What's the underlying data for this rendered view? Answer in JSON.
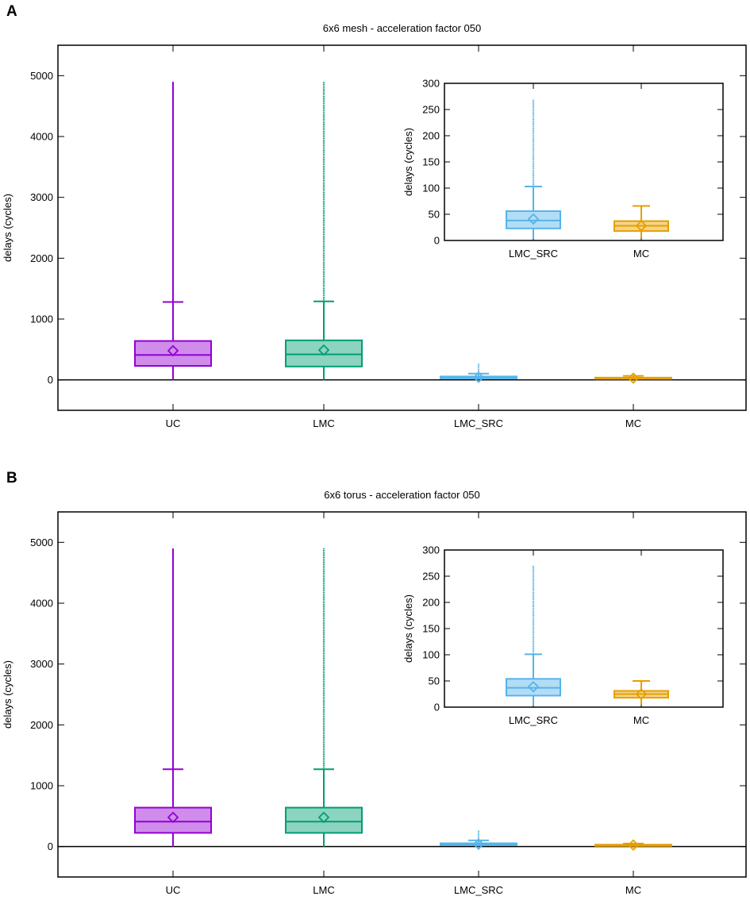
{
  "chart_data": [
    {
      "panel": "A",
      "type": "boxplot",
      "title": "6x6 mesh - acceleration factor 050",
      "xlabel": "",
      "ylabel": "delays (cycles)",
      "ylim": [
        -500,
        5500
      ],
      "yticks": [
        0,
        1000,
        2000,
        3000,
        4000,
        5000
      ],
      "zero_line": true,
      "categories": [
        "UC",
        "LMC",
        "LMC_SRC",
        "MC"
      ],
      "colors": [
        "#9400d3",
        "#009e73",
        "#56b4e9",
        "#e69f00"
      ],
      "boxes": [
        {
          "name": "UC",
          "min": 0,
          "q1": 230,
          "median": 410,
          "q3": 640,
          "whisker_high": 1280,
          "max": 4900,
          "mean": 480,
          "outliers": "none"
        },
        {
          "name": "LMC",
          "min": 0,
          "q1": 220,
          "median": 420,
          "q3": 650,
          "whisker_high": 1290,
          "max": 4900,
          "mean": 490,
          "outliers": "dense"
        },
        {
          "name": "LMC_SRC",
          "min": 3,
          "q1": 23,
          "median": 38,
          "q3": 56,
          "whisker_high": 103,
          "max": 270,
          "mean": 41,
          "outliers": "dense"
        },
        {
          "name": "MC",
          "min": 5,
          "q1": 18,
          "median": 28,
          "q3": 37,
          "whisker_high": 66,
          "max": 66,
          "mean": 28,
          "outliers": "none"
        }
      ],
      "inset": {
        "ylabel": "delays (cycles)",
        "ylim": [
          0,
          300
        ],
        "yticks": [
          0,
          50,
          100,
          150,
          200,
          250,
          300
        ],
        "categories": [
          "LMC_SRC",
          "MC"
        ],
        "colors": [
          "#56b4e9",
          "#e69f00"
        ],
        "boxes": [
          {
            "name": "LMC_SRC",
            "min": 3,
            "q1": 23,
            "median": 38,
            "q3": 56,
            "whisker_high": 103,
            "max": 270,
            "mean": 41,
            "outliers": "dense"
          },
          {
            "name": "MC",
            "min": 5,
            "q1": 18,
            "median": 28,
            "q3": 37,
            "whisker_high": 66,
            "max": 66,
            "mean": 28,
            "outliers": "none"
          }
        ]
      }
    },
    {
      "panel": "B",
      "type": "boxplot",
      "title": "6x6 torus - acceleration factor 050",
      "xlabel": "",
      "ylabel": "delays (cycles)",
      "ylim": [
        -500,
        5500
      ],
      "yticks": [
        0,
        1000,
        2000,
        3000,
        4000,
        5000
      ],
      "zero_line": true,
      "categories": [
        "UC",
        "LMC",
        "LMC_SRC",
        "MC"
      ],
      "colors": [
        "#9400d3",
        "#009e73",
        "#56b4e9",
        "#e69f00"
      ],
      "boxes": [
        {
          "name": "UC",
          "min": 0,
          "q1": 225,
          "median": 410,
          "q3": 640,
          "whisker_high": 1270,
          "max": 4900,
          "mean": 480,
          "outliers": "none"
        },
        {
          "name": "LMC",
          "min": 0,
          "q1": 225,
          "median": 410,
          "q3": 640,
          "whisker_high": 1270,
          "max": 4900,
          "mean": 480,
          "outliers": "dense"
        },
        {
          "name": "LMC_SRC",
          "min": 3,
          "q1": 22,
          "median": 37,
          "q3": 54,
          "whisker_high": 101,
          "max": 270,
          "mean": 39,
          "outliers": "dense"
        },
        {
          "name": "MC",
          "min": 5,
          "q1": 18,
          "median": 25,
          "q3": 31,
          "whisker_high": 50,
          "max": 50,
          "mean": 25,
          "outliers": "none"
        }
      ],
      "inset": {
        "ylabel": "delays (cycles)",
        "ylim": [
          0,
          300
        ],
        "yticks": [
          0,
          50,
          100,
          150,
          200,
          250,
          300
        ],
        "categories": [
          "LMC_SRC",
          "MC"
        ],
        "colors": [
          "#56b4e9",
          "#e69f00"
        ],
        "boxes": [
          {
            "name": "LMC_SRC",
            "min": 3,
            "q1": 22,
            "median": 37,
            "q3": 54,
            "whisker_high": 101,
            "max": 270,
            "mean": 39,
            "outliers": "dense"
          },
          {
            "name": "MC",
            "min": 5,
            "q1": 18,
            "median": 25,
            "q3": 31,
            "whisker_high": 50,
            "max": 50,
            "mean": 25,
            "outliers": "none"
          }
        ]
      }
    }
  ]
}
